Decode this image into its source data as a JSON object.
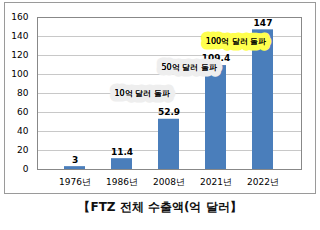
{
  "chart_data": {
    "type": "bar",
    "title": "【FTZ 전체 수출액(억 달러】",
    "categories": [
      "1976년",
      "1986년",
      "2008년",
      "2021년",
      "2022년"
    ],
    "values": [
      3,
      11.4,
      52.9,
      109.4,
      147
    ],
    "color": "#4a7ebb",
    "ylim": [
      0,
      160
    ],
    "yticks": [
      0,
      20,
      40,
      60,
      80,
      100,
      120,
      140,
      160
    ],
    "grid": true,
    "data_labels": true,
    "annotations": [
      {
        "text": "10억 달러 돌파",
        "category": "1986년"
      },
      {
        "text": "50억 달러 돌파",
        "category": "2008년"
      },
      {
        "text": "100억 달러 돌파",
        "category": "2021년"
      }
    ]
  }
}
